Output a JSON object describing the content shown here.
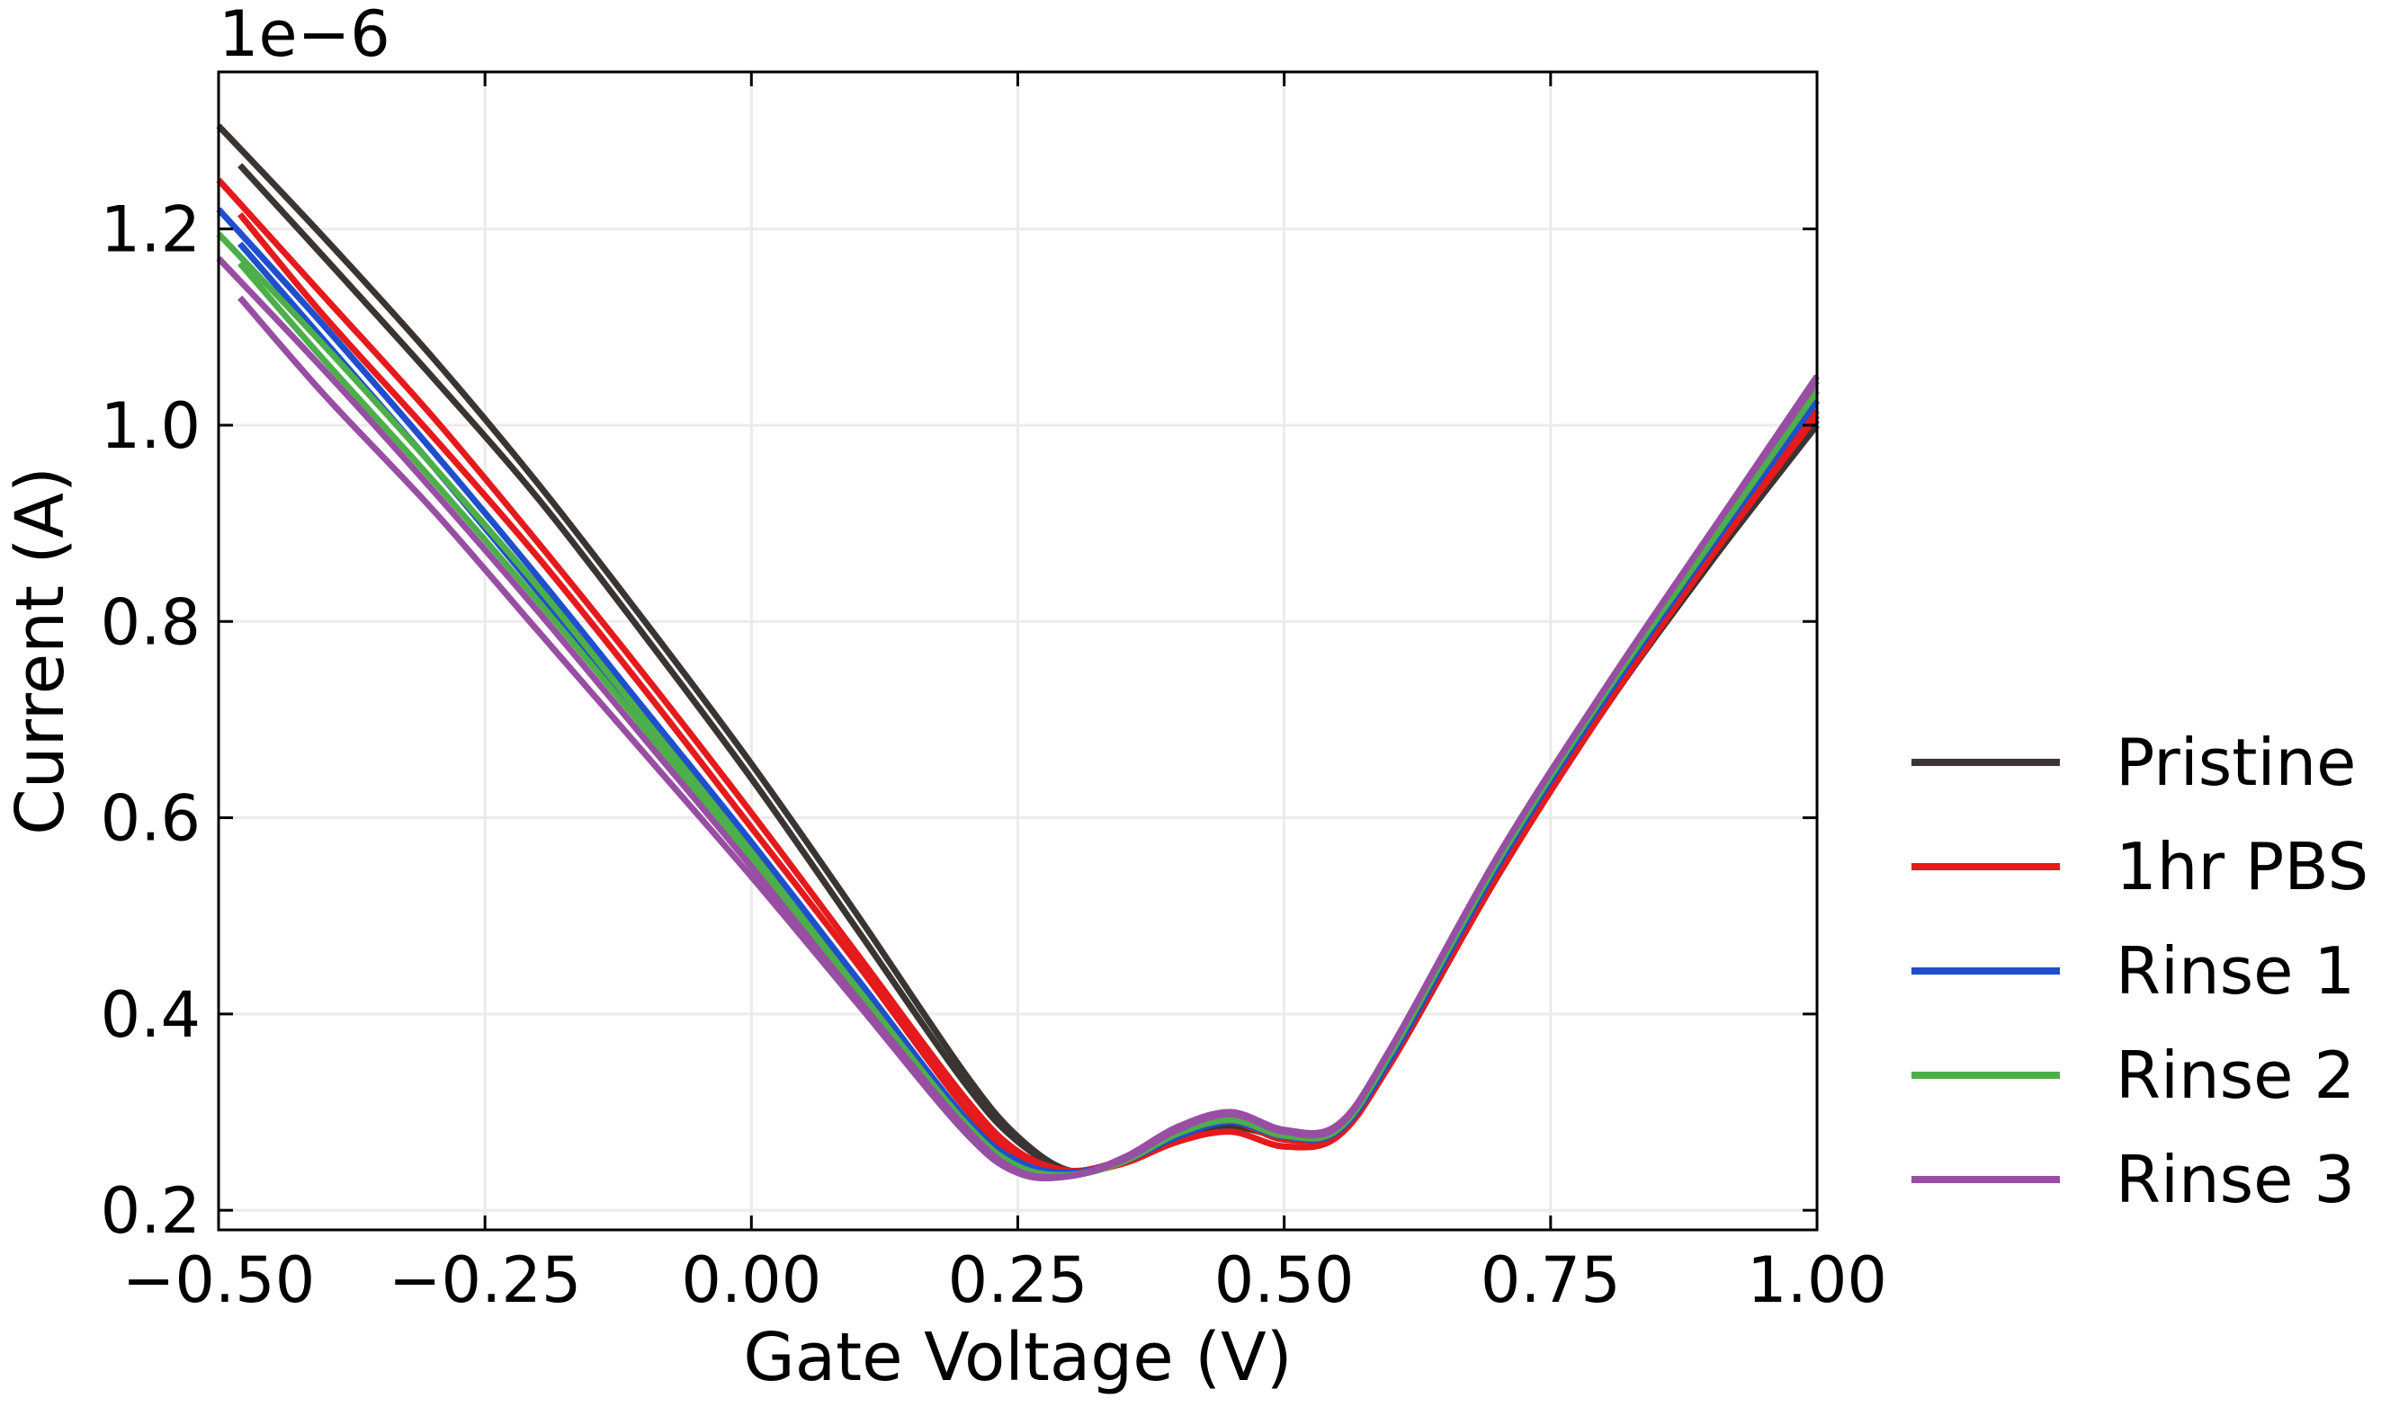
{
  "chart_data": {
    "type": "line",
    "xlabel": "Gate Voltage (V)",
    "ylabel": "Current (A)",
    "y_offset_label": "1e−6",
    "xlim": [
      -0.5,
      1.0
    ],
    "ylim": [
      0.18,
      1.36
    ],
    "x_ticks": [
      -0.5,
      -0.25,
      0.0,
      0.25,
      0.5,
      0.75,
      1.0
    ],
    "x_tick_labels": [
      "−0.50",
      "−0.25",
      "0.00",
      "0.25",
      "0.50",
      "0.75",
      "1.00"
    ],
    "y_ticks": [
      0.2,
      0.4,
      0.6,
      0.8,
      1.0,
      1.2
    ],
    "y_tick_labels": [
      "0.2",
      "0.4",
      "0.6",
      "0.8",
      "1.0",
      "1.2"
    ],
    "grid": true,
    "legend_position": "right",
    "series": [
      {
        "name": "Pristine",
        "color": "#3a3532",
        "sweeps": [
          {
            "x": [
              -0.5,
              -0.4,
              -0.3,
              -0.2,
              -0.1,
              0.0,
              0.1,
              0.2,
              0.25,
              0.3,
              0.35,
              0.4,
              0.45,
              0.5,
              0.55,
              0.6,
              0.7,
              0.8,
              0.9,
              1.0
            ],
            "y": [
              1.305,
              1.19,
              1.07,
              0.94,
              0.8,
              0.655,
              0.5,
              0.34,
              0.275,
              0.24,
              0.25,
              0.27,
              0.285,
              0.275,
              0.28,
              0.35,
              0.54,
              0.71,
              0.86,
              1.0
            ]
          },
          {
            "x": [
              -0.48,
              -0.4,
              -0.3,
              -0.2,
              -0.1,
              0.0,
              0.1,
              0.2,
              0.25,
              0.3,
              0.35,
              0.4,
              0.45,
              0.5,
              0.55,
              0.6,
              0.7,
              0.8,
              0.9,
              1.0
            ],
            "y": [
              1.265,
              1.17,
              1.05,
              0.925,
              0.785,
              0.64,
              0.485,
              0.33,
              0.27,
              0.24,
              0.25,
              0.27,
              0.285,
              0.275,
              0.28,
              0.35,
              0.54,
              0.71,
              0.86,
              1.005
            ]
          }
        ]
      },
      {
        "name": "1hr PBS",
        "color": "#e41a1c",
        "sweeps": [
          {
            "x": [
              -0.5,
              -0.4,
              -0.3,
              -0.2,
              -0.1,
              0.0,
              0.1,
              0.2,
              0.25,
              0.3,
              0.35,
              0.4,
              0.45,
              0.5,
              0.55,
              0.6,
              0.7,
              0.8,
              0.9,
              1.0
            ],
            "y": [
              1.25,
              1.13,
              1.01,
              0.88,
              0.745,
              0.605,
              0.46,
              0.315,
              0.26,
              0.24,
              0.248,
              0.27,
              0.28,
              0.265,
              0.275,
              0.35,
              0.54,
              0.71,
              0.865,
              1.01
            ]
          },
          {
            "x": [
              -0.48,
              -0.4,
              -0.3,
              -0.2,
              -0.1,
              0.0,
              0.1,
              0.2,
              0.25,
              0.3,
              0.35,
              0.4,
              0.45,
              0.5,
              0.55,
              0.6,
              0.7,
              0.8,
              0.9,
              1.0
            ],
            "y": [
              1.215,
              1.11,
              0.99,
              0.865,
              0.73,
              0.59,
              0.45,
              0.305,
              0.255,
              0.24,
              0.252,
              0.275,
              0.29,
              0.272,
              0.28,
              0.35,
              0.545,
              0.715,
              0.87,
              1.015
            ]
          }
        ]
      },
      {
        "name": "Rinse 1",
        "color": "#1f4fcc",
        "sweeps": [
          {
            "x": [
              -0.5,
              -0.4,
              -0.3,
              -0.2,
              -0.1,
              0.0,
              0.1,
              0.2,
              0.25,
              0.3,
              0.35,
              0.4,
              0.45,
              0.5,
              0.55,
              0.6,
              0.7,
              0.8,
              0.9,
              1.0
            ],
            "y": [
              1.22,
              1.1,
              0.975,
              0.845,
              0.71,
              0.575,
              0.435,
              0.295,
              0.25,
              0.238,
              0.25,
              0.275,
              0.29,
              0.275,
              0.28,
              0.355,
              0.55,
              0.72,
              0.875,
              1.025
            ]
          },
          {
            "x": [
              -0.48,
              -0.4,
              -0.3,
              -0.2,
              -0.1,
              0.0,
              0.1,
              0.2,
              0.25,
              0.3,
              0.35,
              0.4,
              0.45,
              0.5,
              0.55,
              0.6,
              0.7,
              0.8,
              0.9,
              1.0
            ],
            "y": [
              1.185,
              1.085,
              0.96,
              0.83,
              0.7,
              0.565,
              0.425,
              0.29,
              0.248,
              0.238,
              0.252,
              0.28,
              0.295,
              0.278,
              0.282,
              0.355,
              0.55,
              0.72,
              0.875,
              1.025
            ]
          }
        ]
      },
      {
        "name": "Rinse 2",
        "color": "#4daf4a",
        "sweeps": [
          {
            "x": [
              -0.5,
              -0.4,
              -0.3,
              -0.2,
              -0.1,
              0.0,
              0.1,
              0.2,
              0.25,
              0.3,
              0.35,
              0.4,
              0.45,
              0.5,
              0.55,
              0.6,
              0.7,
              0.8,
              0.9,
              1.0
            ],
            "y": [
              1.195,
              1.08,
              0.96,
              0.835,
              0.7,
              0.565,
              0.425,
              0.29,
              0.245,
              0.236,
              0.25,
              0.278,
              0.292,
              0.276,
              0.282,
              0.36,
              0.555,
              0.725,
              0.88,
              1.035
            ]
          },
          {
            "x": [
              -0.48,
              -0.4,
              -0.3,
              -0.2,
              -0.1,
              0.0,
              0.1,
              0.2,
              0.25,
              0.3,
              0.35,
              0.4,
              0.45,
              0.5,
              0.55,
              0.6,
              0.7,
              0.8,
              0.9,
              1.0
            ],
            "y": [
              1.165,
              1.065,
              0.945,
              0.82,
              0.69,
              0.555,
              0.42,
              0.285,
              0.243,
              0.236,
              0.252,
              0.28,
              0.295,
              0.28,
              0.284,
              0.36,
              0.555,
              0.725,
              0.88,
              1.035
            ]
          }
        ]
      },
      {
        "name": "Rinse 3",
        "color": "#984ea3",
        "sweeps": [
          {
            "x": [
              -0.5,
              -0.4,
              -0.3,
              -0.2,
              -0.1,
              0.0,
              0.1,
              0.2,
              0.25,
              0.3,
              0.35,
              0.4,
              0.45,
              0.5,
              0.55,
              0.6,
              0.7,
              0.8,
              0.9,
              1.0
            ],
            "y": [
              1.17,
              1.055,
              0.935,
              0.81,
              0.68,
              0.55,
              0.415,
              0.285,
              0.24,
              0.235,
              0.252,
              0.282,
              0.298,
              0.28,
              0.285,
              0.365,
              0.56,
              0.73,
              0.89,
              1.045
            ]
          },
          {
            "x": [
              -0.48,
              -0.4,
              -0.3,
              -0.2,
              -0.1,
              0.0,
              0.1,
              0.2,
              0.25,
              0.3,
              0.35,
              0.4,
              0.45,
              0.5,
              0.55,
              0.6,
              0.7,
              0.8,
              0.9,
              1.0
            ],
            "y": [
              1.13,
              1.03,
              0.915,
              0.79,
              0.665,
              0.54,
              0.41,
              0.28,
              0.238,
              0.235,
              0.254,
              0.285,
              0.3,
              0.282,
              0.287,
              0.365,
              0.56,
              0.73,
              0.89,
              1.05
            ]
          }
        ]
      }
    ]
  }
}
